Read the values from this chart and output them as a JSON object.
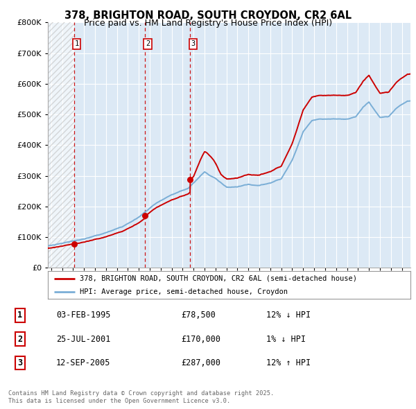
{
  "title1": "378, BRIGHTON ROAD, SOUTH CROYDON, CR2 6AL",
  "title2": "Price paid vs. HM Land Registry's House Price Index (HPI)",
  "legend_line1": "378, BRIGHTON ROAD, SOUTH CROYDON, CR2 6AL (semi-detached house)",
  "legend_line2": "HPI: Average price, semi-detached house, Croydon",
  "transactions": [
    {
      "label": "1",
      "date": "03-FEB-1995",
      "date_num": 1995.09,
      "price": 78500,
      "hpi_note": "12% ↓ HPI"
    },
    {
      "label": "2",
      "date": "25-JUL-2001",
      "date_num": 2001.56,
      "price": 170000,
      "hpi_note": "1% ↓ HPI"
    },
    {
      "label": "3",
      "date": "12-SEP-2005",
      "date_num": 2005.7,
      "price": 287000,
      "hpi_note": "12% ↑ HPI"
    }
  ],
  "table_rows": [
    [
      "1",
      "03-FEB-1995",
      "£78,500",
      "12% ↓ HPI"
    ],
    [
      "2",
      "25-JUL-2001",
      "£170,000",
      "1% ↓ HPI"
    ],
    [
      "3",
      "12-SEP-2005",
      "£287,000",
      "12% ↑ HPI"
    ]
  ],
  "footer": "Contains HM Land Registry data © Crown copyright and database right 2025.\nThis data is licensed under the Open Government Licence v3.0.",
  "price_line_color": "#cc0000",
  "hpi_line_color": "#7aaed6",
  "plot_bg_color": "#dce9f5",
  "grid_color": "#ffffff",
  "vline_color": "#cc0000",
  "ylim": [
    0,
    800000
  ],
  "yticks": [
    0,
    100000,
    200000,
    300000,
    400000,
    500000,
    600000,
    700000,
    800000
  ],
  "xlim_start": 1992.7,
  "xlim_end": 2025.8,
  "hatch_end": 1995.09,
  "hpi_anchors_x": [
    1992.7,
    1993.5,
    1995.0,
    1996.5,
    1998.0,
    1999.5,
    2001.0,
    2002.5,
    2004.0,
    2005.5,
    2007.0,
    2008.0,
    2009.0,
    2010.0,
    2011.0,
    2012.0,
    2013.0,
    2014.0,
    2015.0,
    2016.0,
    2016.8,
    2017.5,
    2018.5,
    2019.5,
    2020.0,
    2020.8,
    2021.5,
    2022.0,
    2022.5,
    2023.0,
    2023.8,
    2024.5,
    2025.5
  ],
  "hpi_anchors_y": [
    72000,
    76000,
    86000,
    97000,
    112000,
    133000,
    163000,
    205000,
    235000,
    256000,
    310000,
    290000,
    262000,
    260000,
    268000,
    265000,
    274000,
    288000,
    350000,
    445000,
    482000,
    488000,
    488000,
    488000,
    488000,
    495000,
    530000,
    545000,
    518000,
    493000,
    496000,
    522000,
    545000
  ]
}
